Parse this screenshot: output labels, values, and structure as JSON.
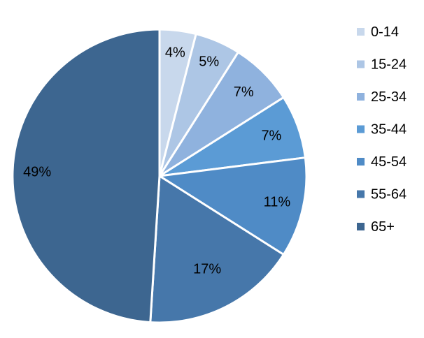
{
  "chart_data": {
    "type": "pie",
    "categories": [
      "0-14",
      "15-24",
      "25-34",
      "35-44",
      "45-54",
      "55-64",
      "65+"
    ],
    "values": [
      4,
      5,
      7,
      7,
      11,
      17,
      49
    ],
    "data_labels": [
      "4%",
      "5%",
      "7%",
      "7%",
      "11%",
      "17%",
      "49%"
    ],
    "colors": [
      "#c8d8ec",
      "#adc6e5",
      "#8fb2de",
      "#5b9bd5",
      "#4f8bc6",
      "#4677aa",
      "#3d6690"
    ],
    "legend_position": "right",
    "start_angle_deg": 0,
    "direction": "clockwise"
  }
}
